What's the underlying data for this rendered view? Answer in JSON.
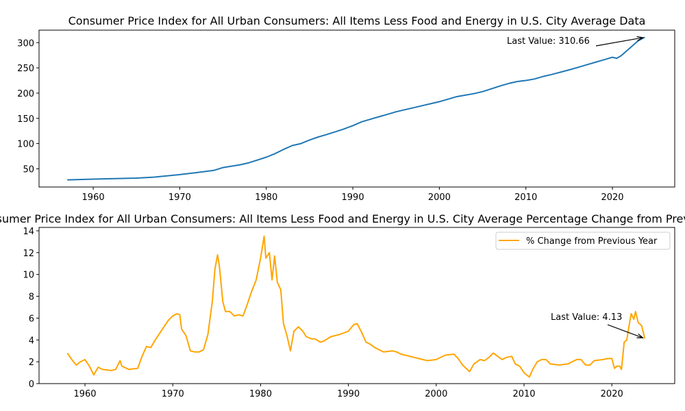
{
  "chart_data": [
    {
      "type": "line",
      "title": "Consumer Price Index for All Urban Consumers: All Items Less Food and Energy in U.S. City Average Data",
      "xlim": [
        1953.74,
        2027.2
      ],
      "ylim": [
        13.9,
        324.8
      ],
      "xticks": [
        1960,
        1970,
        1980,
        1990,
        2000,
        2010,
        2020
      ],
      "yticks": [
        50,
        100,
        150,
        200,
        250,
        300
      ],
      "grid": false,
      "color": "#1f77b4",
      "annotation": "Last Value: 310.66",
      "series": [
        {
          "x": [
            1957,
            1960,
            1965,
            1967,
            1970,
            1972,
            1974,
            1975,
            1977,
            1978,
            1980,
            1981,
            1982,
            1983,
            1984,
            1985,
            1986,
            1987,
            1988,
            1989,
            1990,
            1991,
            1992,
            1993,
            1994,
            1995,
            1996,
            1997,
            1998,
            1999,
            2000,
            2001,
            2002,
            2003,
            2004,
            2005,
            2006,
            2007,
            2008,
            2009,
            2010,
            2011,
            2012,
            2013,
            2014,
            2015,
            2016,
            2017,
            2018,
            2019,
            2020,
            2020.5,
            2021,
            2022,
            2023,
            2023.75
          ],
          "y": [
            28,
            29.5,
            31.5,
            33.4,
            38.5,
            42.5,
            47,
            52.5,
            58,
            62,
            73,
            80,
            88.5,
            96,
            100,
            107,
            113,
            118,
            123.5,
            129,
            135.5,
            143,
            148,
            153,
            158,
            163,
            167,
            171,
            175,
            179,
            183,
            188,
            193,
            196,
            199,
            203,
            208.5,
            214,
            219,
            223,
            225,
            228,
            233,
            237,
            241.5,
            246,
            251,
            256,
            261,
            266,
            271,
            269,
            274,
            289,
            304,
            310.66
          ]
        }
      ]
    },
    {
      "type": "line",
      "title": "Consumer Price Index for All Urban Consumers: All Items Less Food and Energy in U.S. City Average Percentage Change from Previous Year",
      "xlim": [
        1954.77,
        2027.16
      ],
      "ylim": [
        0,
        14.31
      ],
      "xticks": [
        1960,
        1970,
        1980,
        1990,
        2000,
        2010,
        2020
      ],
      "yticks": [
        0,
        2,
        4,
        6,
        8,
        10,
        12,
        14
      ],
      "grid": false,
      "color": "#ffa500",
      "legend": "top-right",
      "annotation": "Last Value: 4.13",
      "series": [
        {
          "name": "% Change from Previous Year",
          "x": [
            1958,
            1958.5,
            1959,
            1959.5,
            1960,
            1960.5,
            1961,
            1961.5,
            1962,
            1963,
            1963.5,
            1964,
            1964.2,
            1965,
            1966,
            1966.5,
            1967,
            1967.5,
            1968,
            1968.5,
            1969,
            1969.5,
            1970,
            1970.5,
            1970.8,
            1971,
            1971.5,
            1972,
            1972.5,
            1973,
            1973.5,
            1974,
            1974.5,
            1974.8,
            1975.1,
            1975.3,
            1975.7,
            1976,
            1976.5,
            1977,
            1977.5,
            1978,
            1978.5,
            1979,
            1979.5,
            1980,
            1980.4,
            1980.6,
            1981,
            1981.3,
            1981.6,
            1981.9,
            1982.3,
            1982.6,
            1983,
            1983.4,
            1983.8,
            1984.3,
            1984.8,
            1985.2,
            1985.8,
            1986.2,
            1986.8,
            1987.2,
            1988,
            1989,
            1990,
            1990.6,
            1991,
            1991.5,
            1992,
            1992.5,
            1993,
            1994,
            1995,
            1995.5,
            1996,
            1997,
            1998,
            1999,
            2000,
            2001,
            2002,
            2002.5,
            2003,
            2003.8,
            2004.3,
            2005,
            2005.5,
            2006,
            2006.5,
            2007,
            2007.5,
            2008,
            2008.6,
            2009,
            2009.5,
            2010,
            2010.6,
            2011,
            2011.5,
            2012,
            2012.5,
            2013,
            2014,
            2015,
            2016,
            2016.5,
            2017,
            2017.5,
            2018,
            2019,
            2019.5,
            2020,
            2020.3,
            2020.6,
            2020.9,
            2021.1,
            2021.4,
            2021.7,
            2022,
            2022.2,
            2022.5,
            2022.7,
            2023,
            2023.4,
            2023.75
          ],
          "y": [
            2.8,
            2.2,
            1.7,
            2.0,
            2.2,
            1.6,
            0.8,
            1.5,
            1.3,
            1.2,
            1.3,
            2.1,
            1.6,
            1.3,
            1.4,
            2.5,
            3.4,
            3.3,
            4.0,
            4.6,
            5.2,
            5.8,
            6.2,
            6.4,
            6.3,
            5.0,
            4.4,
            3.0,
            2.9,
            2.9,
            3.1,
            4.5,
            7.5,
            10.5,
            11.8,
            10.8,
            7.5,
            6.6,
            6.6,
            6.2,
            6.3,
            6.2,
            7.3,
            8.5,
            9.5,
            11.5,
            13.5,
            11.5,
            12.0,
            9.5,
            11.7,
            9.3,
            8.6,
            5.5,
            4.4,
            3.0,
            4.8,
            5.2,
            4.8,
            4.3,
            4.1,
            4.1,
            3.8,
            3.9,
            4.3,
            4.5,
            4.8,
            5.4,
            5.5,
            4.7,
            3.8,
            3.6,
            3.3,
            2.9,
            3.0,
            2.9,
            2.7,
            2.5,
            2.3,
            2.1,
            2.2,
            2.6,
            2.7,
            2.3,
            1.7,
            1.1,
            1.8,
            2.2,
            2.1,
            2.4,
            2.8,
            2.5,
            2.2,
            2.4,
            2.5,
            1.8,
            1.6,
            1.0,
            0.6,
            1.3,
            2.0,
            2.2,
            2.2,
            1.8,
            1.7,
            1.8,
            2.2,
            2.2,
            1.7,
            1.7,
            2.1,
            2.2,
            2.3,
            2.3,
            1.4,
            1.6,
            1.6,
            1.3,
            3.8,
            4.0,
            5.5,
            6.4,
            5.9,
            6.6,
            5.6,
            5.3,
            4.13
          ]
        }
      ]
    }
  ]
}
